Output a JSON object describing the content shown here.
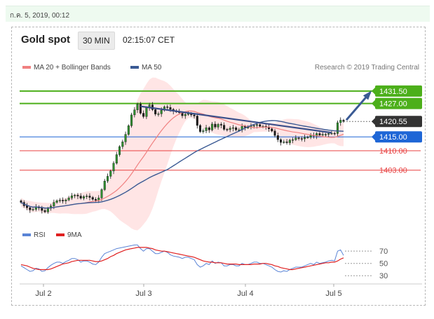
{
  "header": {
    "date_stamp": "ก.ค. 5, 2019, 00:12",
    "title": "Gold spot",
    "interval": "30 MIN",
    "time": "02:15:07 CET"
  },
  "colors": {
    "resistance_green": "#4caf1a",
    "support_blue": "#1e66d6",
    "support_red": "#e84040",
    "trend_navy": "#3a4f8a",
    "ma50": "#3a5a94",
    "ma20": "#f08080",
    "bollinger_fill": "#ffe0e0",
    "price_tag": "#333333",
    "rsi": "#5a84d6",
    "rsi_ma": "#e02020"
  },
  "chart_data": [
    {
      "type": "candlestick",
      "legend": [
        {
          "name": "MA 20 + Bollinger Bands",
          "color": "#f08080"
        },
        {
          "name": "MA 50",
          "color": "#3a5a94"
        }
      ],
      "credit": "Research © 2019 Trading Central",
      "x_ticks": [
        "Jul 2",
        "Jul 3",
        "Jul 4",
        "Jul 5"
      ],
      "ylim": [
        1384,
        1436
      ],
      "current_price": 1420.55,
      "levels": [
        {
          "value": 1431.5,
          "label": "1431.50",
          "style": "resistance"
        },
        {
          "value": 1427.0,
          "label": "1427.00",
          "style": "resistance"
        },
        {
          "value": 1415.0,
          "label": "1415.00",
          "style": "pivot"
        },
        {
          "value": 1410.0,
          "label": "1410.00",
          "style": "support"
        },
        {
          "value": 1403.0,
          "label": "1403.00",
          "style": "support"
        }
      ],
      "close_series": [
        1391.4,
        1390.2,
        1389.5,
        1388.7,
        1388.9,
        1389.8,
        1389.4,
        1388.5,
        1388.0,
        1389.3,
        1390.1,
        1391.4,
        1392.0,
        1392.2,
        1391.9,
        1392.3,
        1393.0,
        1393.8,
        1394.0,
        1393.7,
        1392.9,
        1393.5,
        1393.7,
        1393.2,
        1392.5,
        1392.1,
        1393.0,
        1396.0,
        1399.1,
        1400.8,
        1402.7,
        1405.5,
        1408.6,
        1411.5,
        1413.2,
        1415.9,
        1419.0,
        1422.9,
        1424.7,
        1426.8,
        1423.5,
        1422.3,
        1425.5,
        1426.5,
        1424.8,
        1423.2,
        1423.3,
        1424.6,
        1425.8,
        1425.6,
        1424.9,
        1424.2,
        1424.1,
        1423.7,
        1422.6,
        1423.1,
        1423.4,
        1422.9,
        1422.5,
        1419.1,
        1416.9,
        1417.2,
        1418.3,
        1417.5,
        1419.6,
        1418.5,
        1419.5,
        1419.2,
        1417.7,
        1417.6,
        1418.1,
        1418.3,
        1417.5,
        1417.5,
        1418.8,
        1418.4,
        1418.4,
        1418.9,
        1419.1,
        1419.4,
        1418.8,
        1418.8,
        1418.5,
        1417.9,
        1417.1,
        1415.5,
        1414.0,
        1413.0,
        1413.2,
        1412.9,
        1413.8,
        1414.0,
        1414.6,
        1414.4,
        1414.3,
        1414.8,
        1414.9,
        1415.6,
        1415.3,
        1416.2,
        1415.6,
        1415.9,
        1415.9,
        1416.2,
        1416.3,
        1416.2,
        1420.1,
        1421.0,
        1420.55
      ],
      "trendline": {
        "from": 1426.0,
        "to": 1416.5
      },
      "projection_target": 1431.5
    },
    {
      "type": "line",
      "legend": [
        {
          "name": "RSI",
          "color": "#5a84d6"
        },
        {
          "name": "9MA",
          "color": "#e02020"
        }
      ],
      "y_ticks": [
        70,
        50,
        30
      ],
      "ylim": [
        20,
        85
      ],
      "rsi": [
        46,
        43,
        40,
        37,
        38,
        42,
        41,
        37,
        38,
        43,
        47,
        50,
        52,
        52,
        50,
        53,
        55,
        58,
        58,
        56,
        52,
        54,
        54,
        52,
        49,
        48,
        52,
        60,
        66,
        68,
        70,
        72,
        74,
        75,
        76,
        77,
        78,
        79,
        80,
        80,
        74,
        70,
        74,
        74,
        70,
        66,
        66,
        68,
        70,
        68,
        64,
        62,
        61,
        60,
        58,
        60,
        60,
        58,
        56,
        48,
        44,
        46,
        50,
        48,
        54,
        50,
        52,
        51,
        46,
        46,
        48,
        48,
        46,
        46,
        50,
        48,
        48,
        50,
        52,
        52,
        50,
        50,
        48,
        46,
        44,
        40,
        37,
        36,
        38,
        37,
        40,
        42,
        44,
        44,
        44,
        46,
        48,
        50,
        48,
        52,
        50,
        51,
        52,
        54,
        55,
        54,
        70,
        72,
        63
      ],
      "ma9": [
        48,
        47,
        46,
        44,
        42,
        41,
        40,
        40,
        40,
        40,
        41,
        43,
        45,
        47,
        49,
        50,
        51,
        53,
        54,
        55,
        55,
        55,
        55,
        55,
        54,
        53,
        53,
        54,
        56,
        58,
        61,
        63,
        66,
        68,
        70,
        72,
        73,
        74,
        75,
        76,
        76,
        76,
        76,
        75,
        74,
        72,
        71,
        70,
        70,
        69,
        68,
        67,
        66,
        65,
        64,
        63,
        62,
        61,
        60,
        58,
        56,
        54,
        53,
        52,
        52,
        51,
        51,
        51,
        50,
        49,
        49,
        49,
        49,
        48,
        48,
        48,
        48,
        48,
        49,
        49,
        49,
        50,
        50,
        49,
        48,
        46,
        45,
        43,
        42,
        41,
        40,
        40,
        41,
        42,
        43,
        44,
        45,
        46,
        47,
        48,
        49,
        50,
        51,
        51,
        52,
        52,
        54,
        57,
        59
      ]
    }
  ]
}
